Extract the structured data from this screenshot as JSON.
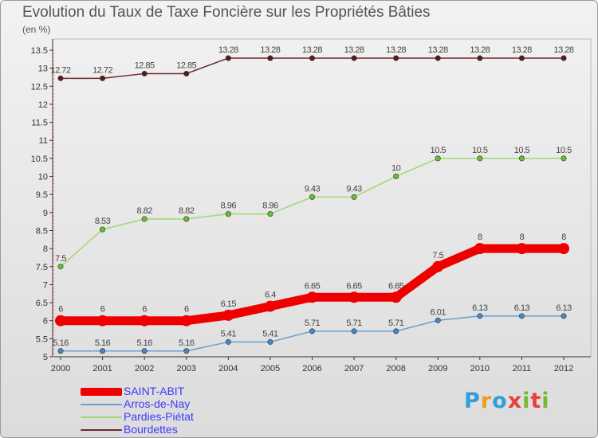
{
  "title": "Evolution du Taux de Taxe Foncière sur les Propriétés Bâties",
  "subtitle": "(en %)",
  "logo": {
    "letters": [
      "P",
      "r",
      "o",
      "x",
      "i",
      "t",
      "i"
    ],
    "colors": [
      "#2f9fd8",
      "#e8a020",
      "#2f9fd8",
      "#e84040",
      "#78b830",
      "#e84040",
      "#78b830"
    ]
  },
  "chart_data": {
    "type": "line",
    "categories": [
      "2000",
      "2001",
      "2002",
      "2003",
      "2004",
      "2005",
      "2006",
      "2007",
      "2008",
      "2009",
      "2010",
      "2011",
      "2012"
    ],
    "ylim": [
      5,
      13.5
    ],
    "yticks": [
      "5",
      "5.5",
      "6",
      "6.5",
      "7",
      "7.5",
      "8",
      "8.5",
      "9",
      "9.5",
      "10",
      "10.5",
      "11",
      "11.5",
      "12",
      "12.5",
      "13",
      "13.5"
    ],
    "legend_position": "bottom-left",
    "series": [
      {
        "name": "SAINT-ABIT",
        "color": "#ee0000",
        "marker": "#ee0000",
        "width": "thick",
        "values": [
          6,
          6,
          6,
          6,
          6.15,
          6.4,
          6.65,
          6.65,
          6.65,
          7.5,
          8,
          8,
          8
        ],
        "labels": [
          "6",
          "6",
          "6",
          "6",
          "6.15",
          "6.4",
          "6.65",
          "6.65",
          "6.65",
          "7.5",
          "8",
          "8",
          "8"
        ]
      },
      {
        "name": "Arros-de-Nay",
        "color": "#6a9fd0",
        "marker": "#4488cc",
        "width": "thin",
        "values": [
          5.16,
          5.16,
          5.16,
          5.16,
          5.41,
          5.41,
          5.71,
          5.71,
          5.71,
          6.01,
          6.13,
          6.13,
          6.13
        ],
        "labels": [
          "5.16",
          "5.16",
          "5.16",
          "5.16",
          "5.41",
          "5.41",
          "5.71",
          "5.71",
          "5.71",
          "6.01",
          "6.13",
          "6.13",
          "6.13"
        ]
      },
      {
        "name": "Pardies-Piétat",
        "color": "#a0d870",
        "marker": "#66c030",
        "width": "thin",
        "values": [
          7.5,
          8.53,
          8.82,
          8.82,
          8.96,
          8.96,
          9.43,
          9.43,
          10,
          10.5,
          10.5,
          10.5,
          10.5
        ],
        "labels": [
          "7.5",
          "8.53",
          "8.82",
          "8.82",
          "8.96",
          "8.96",
          "9.43",
          "9.43",
          "10",
          "10.5",
          "10.5",
          "10.5",
          "10.5"
        ]
      },
      {
        "name": "Bourdettes",
        "color": "#6a2a2a",
        "marker": "#5a1a1a",
        "width": "thin",
        "values": [
          12.72,
          12.72,
          12.85,
          12.85,
          13.28,
          13.28,
          13.28,
          13.28,
          13.28,
          13.28,
          13.28,
          13.28,
          13.28
        ],
        "labels": [
          "12.72",
          "12.72",
          "12.85",
          "12.85",
          "13.28",
          "13.28",
          "13.28",
          "13.28",
          "13.28",
          "13.28",
          "13.28",
          "13.28",
          "13.28"
        ]
      }
    ]
  }
}
